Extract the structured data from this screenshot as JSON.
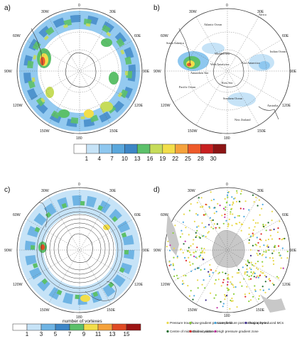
{
  "panels": [
    {
      "letter": "a)",
      "labels": {
        "t0": "0",
        "t30e": "30E",
        "t60e": "60E",
        "t90e": "90E",
        "t120e": "120E",
        "t150e": "150E",
        "t180": "180",
        "t150w": "150W",
        "t120w": "120W",
        "t90w": "90W",
        "t60w": "60W",
        "t30w": "30W"
      }
    },
    {
      "letter": "b)",
      "labels": {
        "t0": "0",
        "t30e": "30E",
        "t60e": "60E",
        "t90e": "90E",
        "t120e": "120E",
        "t150e": "150E",
        "t180": "180",
        "t150w": "150W",
        "t120w": "120W",
        "t90w": "90W",
        "t60w": "60W",
        "t30w": "30W"
      }
    },
    {
      "letter": "c)",
      "labels": {
        "t0": "0",
        "t30e": "30E",
        "t60e": "60E",
        "t90e": "90E",
        "t120e": "120E",
        "t150e": "150E",
        "t180": "180",
        "t150w": "150W",
        "t120w": "120W",
        "t90w": "90W",
        "t60w": "60W",
        "t30w": "30W"
      }
    },
    {
      "letter": "d)",
      "labels": {
        "t0": "0",
        "t30e": "30E",
        "t60e": "60E",
        "t90e": "90E",
        "t120e": "120E",
        "t150e": "150E",
        "t180": "180",
        "t150w": "150W",
        "t120w": "120W",
        "t90w": "90W",
        "t60w": "60W",
        "t30w": "30W"
      }
    }
  ],
  "geo_labels": {
    "atlantic": "Atlantic Ocean",
    "africa": "Africa",
    "south_america": "South America",
    "weddell": "Weddell Sea",
    "amundsen": "Amundsen Sea",
    "pacific": "Pacific Ocean",
    "west_antarctica": "West Antarctica",
    "east_antarctica": "East Antarctica",
    "indian": "Indian Ocean",
    "australia": "Australia",
    "southern": "Southern Ocean",
    "new_zealand": "New Zealand",
    "ross": "Ross Sea"
  },
  "colorbar_top": {
    "ticks": [
      "1",
      "4",
      "7",
      "10",
      "13",
      "16",
      "19",
      "22",
      "25",
      "28",
      "30"
    ],
    "colors": [
      "#ffffff",
      "#c6e3f7",
      "#8ec7ef",
      "#5aa7dc",
      "#3d86c6",
      "#5cc06a",
      "#c6dc5a",
      "#f2de4a",
      "#f5a23c",
      "#ee5a2a",
      "#c82020",
      "#8c1414"
    ]
  },
  "colorbar_bottom": {
    "ticks": [
      "1",
      "3",
      "5",
      "7",
      "9",
      "11",
      "13",
      "15"
    ],
    "colors": [
      "#ffffff",
      "#c6e3f7",
      "#6fb4e4",
      "#3d86c6",
      "#5cc06a",
      "#f2de4a",
      "#f5a23c",
      "#e04a24",
      "#9c1414"
    ],
    "title": "number of vortexes"
  },
  "legend_d": [
    {
      "label": "Pressure trough",
      "color": "#e8d84a"
    },
    {
      "label": "Low-gradient pressure field",
      "color": "#8ccf3a"
    },
    {
      "label": "Low-pressure post occlusion zone",
      "color": "#4aa8e0"
    },
    {
      "label": "Orography-induced MCs",
      "color": "#3a2a8a"
    },
    {
      "label": "Centre of mid-latitude cyclone",
      "color": "#1a6a2a"
    },
    {
      "label": "Cold air outbreak",
      "color": "#e02a2a"
    },
    {
      "label": "High pressure gradient zone",
      "color": "#c030a0"
    }
  ]
}
